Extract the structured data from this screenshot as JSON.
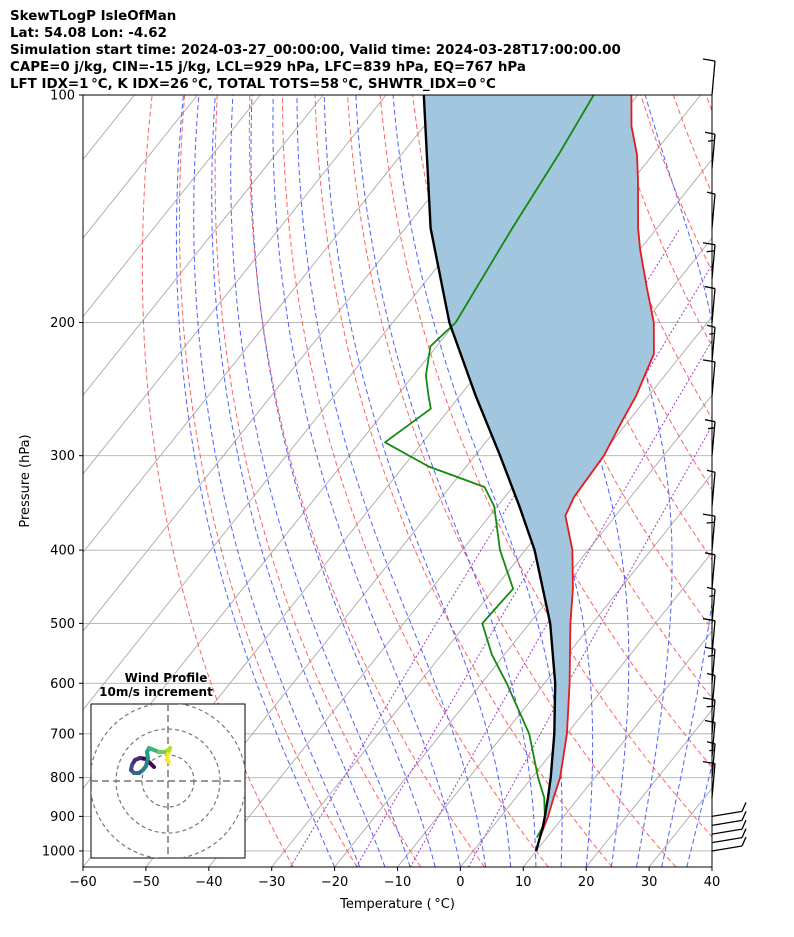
{
  "header": {
    "title": "SkewTLogP IsleOfMan",
    "location": "Lat: 54.08   Lon: -4.62",
    "times": "Simulation start time: 2024-03-27_00:00:00, Valid time: 2024-03-28T17:00:00.00",
    "indices_1": "CAPE=0 j/kg, CIN=-15 j/kg, LCL=929 hPa, LFC=839 hPa, EQ=767 hPa",
    "indices_2": "LFT IDX=1 °C, K IDX=26 °C, TOTAL TOTS=58 °C, SHWTR_IDX=0 °C"
  },
  "chart_data": {
    "type": "skew-t",
    "xlabel": "Temperature ( °C)",
    "ylabel": "Pressure (hPa)",
    "xlim": [
      -60,
      40
    ],
    "ylim": [
      1050,
      100
    ],
    "x_ticks": [
      "−60",
      "−50",
      "−40",
      "−30",
      "−20",
      "−10",
      "0",
      "10",
      "20",
      "30",
      "40"
    ],
    "y_ticks": [
      "100",
      "200",
      "300",
      "400",
      "500",
      "600",
      "700",
      "800",
      "900",
      "1000"
    ],
    "y_tick_values": [
      100,
      200,
      300,
      400,
      500,
      600,
      700,
      800,
      900,
      1000
    ],
    "grid": true,
    "colors": {
      "temperature": "#e41a1c",
      "dewpoint": "#138a13",
      "parcel": "#000000",
      "cape_fill": "#a3c6df",
      "dry_adiabats": "#ff6161",
      "moist_adiabats": "#4f60ff",
      "mixing_ratio": "#9b3fc2",
      "isotherms": "#aaaaaa"
    },
    "temperature_profile": [
      {
        "p": 960,
        "t": 8.9
      },
      {
        "p": 930,
        "t": 8.2
      },
      {
        "p": 900,
        "t": 7.5
      },
      {
        "p": 850,
        "t": 6.0
      },
      {
        "p": 800,
        "t": 4.5
      },
      {
        "p": 700,
        "t": 0.0
      },
      {
        "p": 600,
        "t": -6.0
      },
      {
        "p": 500,
        "t": -13.5
      },
      {
        "p": 450,
        "t": -17.5
      },
      {
        "p": 400,
        "t": -22.5
      },
      {
        "p": 360,
        "t": -28.0
      },
      {
        "p": 340,
        "t": -29.0
      },
      {
        "p": 300,
        "t": -29.5
      },
      {
        "p": 270,
        "t": -31.0
      },
      {
        "p": 250,
        "t": -32.0
      },
      {
        "p": 220,
        "t": -34.5
      },
      {
        "p": 200,
        "t": -38.5
      },
      {
        "p": 180,
        "t": -44.0
      },
      {
        "p": 160,
        "t": -50.0
      },
      {
        "p": 150,
        "t": -53.0
      },
      {
        "p": 130,
        "t": -59.0
      },
      {
        "p": 120,
        "t": -62.5
      },
      {
        "p": 110,
        "t": -67.0
      },
      {
        "p": 100,
        "t": -71.0
      }
    ],
    "dewpoint_profile": [
      {
        "p": 960,
        "t": 8.4
      },
      {
        "p": 930,
        "t": 8.0
      },
      {
        "p": 900,
        "t": 7.0
      },
      {
        "p": 850,
        "t": 4.5
      },
      {
        "p": 800,
        "t": 1.0
      },
      {
        "p": 700,
        "t": -6.0
      },
      {
        "p": 600,
        "t": -16.0
      },
      {
        "p": 550,
        "t": -22.0
      },
      {
        "p": 500,
        "t": -27.5
      },
      {
        "p": 450,
        "t": -27.0
      },
      {
        "p": 400,
        "t": -34.0
      },
      {
        "p": 350,
        "t": -40.5
      },
      {
        "p": 330,
        "t": -44.5
      },
      {
        "p": 310,
        "t": -56.0
      },
      {
        "p": 288,
        "t": -66.0
      },
      {
        "p": 260,
        "t": -63.0
      },
      {
        "p": 250,
        "t": -65.0
      },
      {
        "p": 235,
        "t": -68.0
      },
      {
        "p": 215,
        "t": -71.0
      },
      {
        "p": 200,
        "t": -70.0
      },
      {
        "p": 150,
        "t": -73.0
      },
      {
        "p": 120,
        "t": -75.0
      },
      {
        "p": 100,
        "t": -77.0
      }
    ],
    "parcel_profile": [
      {
        "p": 1000,
        "t": 10.0
      },
      {
        "p": 960,
        "t": 8.9
      },
      {
        "p": 929,
        "t": 8.0
      },
      {
        "p": 900,
        "t": 7.0
      },
      {
        "p": 850,
        "t": 5.1
      },
      {
        "p": 800,
        "t": 3.0
      },
      {
        "p": 700,
        "t": -2.0
      },
      {
        "p": 600,
        "t": -8.3
      },
      {
        "p": 500,
        "t": -16.7
      },
      {
        "p": 400,
        "t": -28.5
      },
      {
        "p": 350,
        "t": -36.5
      },
      {
        "p": 300,
        "t": -46.0
      },
      {
        "p": 250,
        "t": -57.5
      },
      {
        "p": 200,
        "t": -71.0
      },
      {
        "p": 150,
        "t": -86.0
      },
      {
        "p": 100,
        "t": -104.0
      }
    ],
    "wind_profile": {
      "title": "Wind Profile",
      "subtitle": "10m/s increment",
      "rings_ms": [
        10,
        20,
        30
      ]
    }
  }
}
